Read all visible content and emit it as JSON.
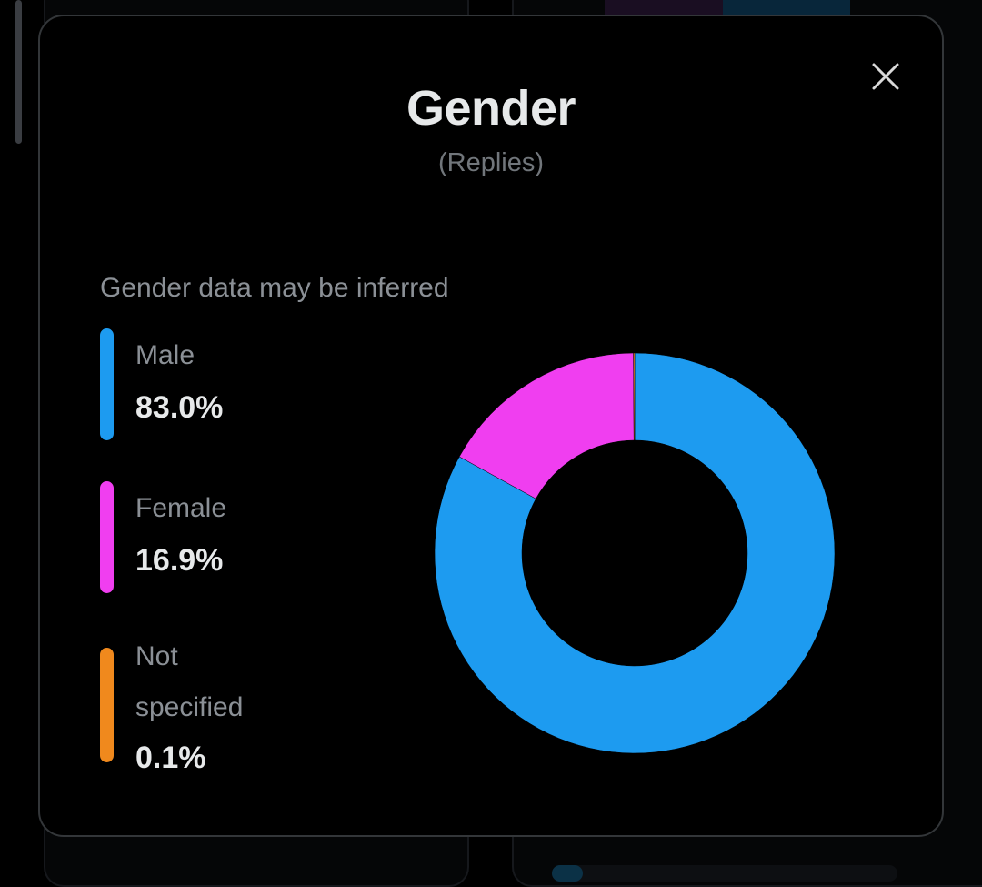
{
  "modal": {
    "title": "Gender",
    "subtitle": "(Replies)",
    "note": "Gender data may be inferred",
    "close_icon": "close-icon"
  },
  "colors": {
    "male": "#1d9bf0",
    "female": "#f03ef0",
    "not_specified": "#f0891d",
    "background": "#000000"
  },
  "legend": [
    {
      "label": "Male",
      "value": "83.0%"
    },
    {
      "label": "Female",
      "value": "16.9%"
    },
    {
      "label": "Not specified",
      "value": "0.1%"
    }
  ],
  "chart_data": {
    "type": "pie",
    "donut": true,
    "categories": [
      "Male",
      "Female",
      "Not specified"
    ],
    "values": [
      83.0,
      16.9,
      0.1
    ],
    "title": "Gender",
    "subtitle": "(Replies)",
    "legend_position": "left"
  }
}
